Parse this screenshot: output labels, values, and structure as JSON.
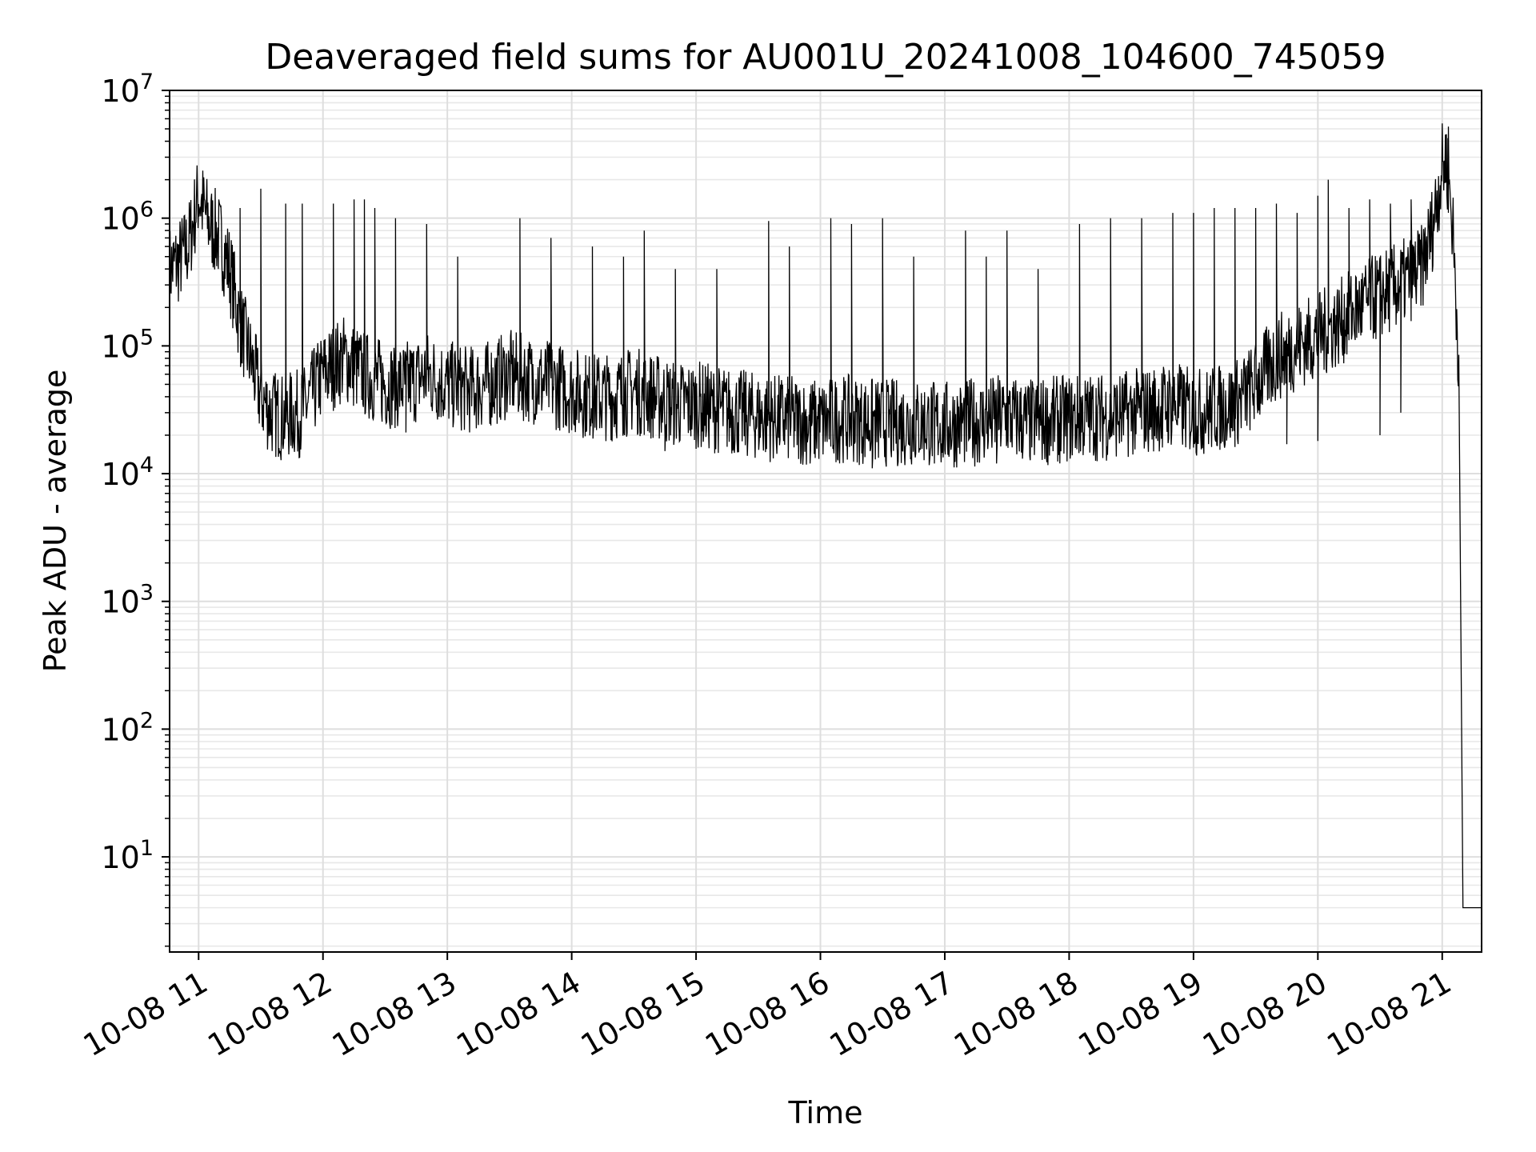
{
  "chart_data": {
    "type": "line",
    "title": "Deaveraged field sums for AU001U_20241008_104600_745059",
    "xlabel": "Time",
    "ylabel": "Peak ADU - average",
    "yscale": "log",
    "ylim": [
      1.8,
      10000000
    ],
    "xlim": [
      "2024-10-08 10:46",
      "2024-10-08 21:19"
    ],
    "grid": true,
    "x_ticks": [
      {
        "t": "2024-10-08 11:00",
        "label": "10-08 11"
      },
      {
        "t": "2024-10-08 12:00",
        "label": "10-08 12"
      },
      {
        "t": "2024-10-08 13:00",
        "label": "10-08 13"
      },
      {
        "t": "2024-10-08 14:00",
        "label": "10-08 14"
      },
      {
        "t": "2024-10-08 15:00",
        "label": "10-08 15"
      },
      {
        "t": "2024-10-08 16:00",
        "label": "10-08 16"
      },
      {
        "t": "2024-10-08 17:00",
        "label": "10-08 17"
      },
      {
        "t": "2024-10-08 18:00",
        "label": "10-08 18"
      },
      {
        "t": "2024-10-08 19:00",
        "label": "10-08 19"
      },
      {
        "t": "2024-10-08 20:00",
        "label": "10-08 20"
      },
      {
        "t": "2024-10-08 21:00",
        "label": "10-08 21"
      }
    ],
    "y_ticks": [
      {
        "value": 10,
        "base": "10",
        "exp": "1"
      },
      {
        "value": 100,
        "base": "10",
        "exp": "2"
      },
      {
        "value": 1000,
        "base": "10",
        "exp": "3"
      },
      {
        "value": 10000,
        "base": "10",
        "exp": "4"
      },
      {
        "value": 100000,
        "base": "10",
        "exp": "5"
      },
      {
        "value": 1000000,
        "base": "10",
        "exp": "6"
      },
      {
        "value": 10000000,
        "base": "10",
        "exp": "7"
      }
    ],
    "series": [
      {
        "color": "#000000",
        "x": [
          "2024-10-08 10:46",
          "2024-10-08 10:50",
          "2024-10-08 10:55",
          "2024-10-08 11:00",
          "2024-10-08 11:05",
          "2024-10-08 11:10",
          "2024-10-08 11:15",
          "2024-10-08 11:20",
          "2024-10-08 11:25",
          "2024-10-08 11:30",
          "2024-10-08 11:35",
          "2024-10-08 11:40",
          "2024-10-08 11:50",
          "2024-10-08 12:00",
          "2024-10-08 12:10",
          "2024-10-08 12:20",
          "2024-10-08 12:30",
          "2024-10-08 12:40",
          "2024-10-08 12:50",
          "2024-10-08 13:00",
          "2024-10-08 13:10",
          "2024-10-08 13:20",
          "2024-10-08 13:30",
          "2024-10-08 13:40",
          "2024-10-08 13:50",
          "2024-10-08 14:00",
          "2024-10-08 14:10",
          "2024-10-08 14:20",
          "2024-10-08 14:30",
          "2024-10-08 14:40",
          "2024-10-08 14:50",
          "2024-10-08 15:00",
          "2024-10-08 15:10",
          "2024-10-08 15:20",
          "2024-10-08 15:30",
          "2024-10-08 15:40",
          "2024-10-08 15:50",
          "2024-10-08 16:00",
          "2024-10-08 16:10",
          "2024-10-08 16:20",
          "2024-10-08 16:30",
          "2024-10-08 16:40",
          "2024-10-08 16:50",
          "2024-10-08 17:00",
          "2024-10-08 17:10",
          "2024-10-08 17:20",
          "2024-10-08 17:30",
          "2024-10-08 17:40",
          "2024-10-08 17:50",
          "2024-10-08 18:00",
          "2024-10-08 18:10",
          "2024-10-08 18:20",
          "2024-10-08 18:30",
          "2024-10-08 18:40",
          "2024-10-08 18:50",
          "2024-10-08 19:00",
          "2024-10-08 19:10",
          "2024-10-08 19:20",
          "2024-10-08 19:30",
          "2024-10-08 19:40",
          "2024-10-08 19:50",
          "2024-10-08 20:00",
          "2024-10-08 20:10",
          "2024-10-08 20:20",
          "2024-10-08 20:30",
          "2024-10-08 20:40",
          "2024-10-08 20:50",
          "2024-10-08 20:55",
          "2024-10-08 21:00",
          "2024-10-08 21:02",
          "2024-10-08 21:05",
          "2024-10-08 21:08",
          "2024-10-08 21:10",
          "2024-10-08 21:12",
          "2024-10-08 21:15",
          "2024-10-08 21:19"
        ],
        "y": [
          400000,
          450000,
          600000,
          1500000,
          900000,
          700000,
          400000,
          150000,
          80000,
          40000,
          30000,
          28000,
          30000,
          60000,
          80000,
          60000,
          50000,
          50000,
          60000,
          50000,
          45000,
          50000,
          60000,
          55000,
          50000,
          45000,
          40000,
          40000,
          45000,
          40000,
          35000,
          35000,
          32000,
          30000,
          28000,
          27000,
          26000,
          25000,
          27000,
          26000,
          25000,
          25000,
          25000,
          24000,
          25000,
          26000,
          28000,
          25000,
          26000,
          27000,
          28000,
          28000,
          30000,
          32000,
          35000,
          30000,
          32000,
          35000,
          50000,
          80000,
          100000,
          120000,
          150000,
          200000,
          250000,
          300000,
          400000,
          800000,
          2500000,
          3000000,
          900000,
          80000,
          4,
          4,
          4,
          4
        ],
        "spikes": [
          [
            "2024-10-08 11:20",
            1200000
          ],
          [
            "2024-10-08 11:30",
            1700000
          ],
          [
            "2024-10-08 11:42",
            1300000
          ],
          [
            "2024-10-08 11:50",
            1300000
          ],
          [
            "2024-10-08 12:05",
            1300000
          ],
          [
            "2024-10-08 12:15",
            1400000
          ],
          [
            "2024-10-08 12:20",
            1400000
          ],
          [
            "2024-10-08 12:25",
            1200000
          ],
          [
            "2024-10-08 12:35",
            1000000
          ],
          [
            "2024-10-08 12:50",
            900000
          ],
          [
            "2024-10-08 13:05",
            500000
          ],
          [
            "2024-10-08 13:35",
            1000000
          ],
          [
            "2024-10-08 13:50",
            700000
          ],
          [
            "2024-10-08 14:10",
            600000
          ],
          [
            "2024-10-08 14:25",
            500000
          ],
          [
            "2024-10-08 14:35",
            800000
          ],
          [
            "2024-10-08 14:50",
            400000
          ],
          [
            "2024-10-08 15:10",
            400000
          ],
          [
            "2024-10-08 15:35",
            950000
          ],
          [
            "2024-10-08 15:45",
            600000
          ],
          [
            "2024-10-08 16:05",
            1000000
          ],
          [
            "2024-10-08 16:15",
            900000
          ],
          [
            "2024-10-08 16:30",
            1000000
          ],
          [
            "2024-10-08 16:45",
            500000
          ],
          [
            "2024-10-08 17:10",
            800000
          ],
          [
            "2024-10-08 17:20",
            500000
          ],
          [
            "2024-10-08 17:30",
            800000
          ],
          [
            "2024-10-08 17:45",
            400000
          ],
          [
            "2024-10-08 18:05",
            900000
          ],
          [
            "2024-10-08 18:20",
            1000000
          ],
          [
            "2024-10-08 18:35",
            1000000
          ],
          [
            "2024-10-08 18:50",
            1100000
          ],
          [
            "2024-10-08 19:00",
            1100000
          ],
          [
            "2024-10-08 19:10",
            1200000
          ],
          [
            "2024-10-08 19:20",
            1200000
          ],
          [
            "2024-10-08 19:30",
            1200000
          ],
          [
            "2024-10-08 19:40",
            1300000
          ],
          [
            "2024-10-08 19:50",
            1100000
          ],
          [
            "2024-10-08 20:00",
            1500000
          ],
          [
            "2024-10-08 20:05",
            2000000
          ],
          [
            "2024-10-08 20:15",
            1200000
          ],
          [
            "2024-10-08 20:25",
            1400000
          ],
          [
            "2024-10-08 20:35",
            1300000
          ],
          [
            "2024-10-08 20:45",
            1400000
          ],
          [
            "2024-10-08 21:03",
            5200000
          ]
        ],
        "dips": [
          [
            "2024-10-08 11:35",
            20000
          ],
          [
            "2024-10-08 11:45",
            22000
          ],
          [
            "2024-10-08 12:40",
            21000
          ],
          [
            "2024-10-08 13:15",
            24000
          ],
          [
            "2024-10-08 14:45",
            15000
          ],
          [
            "2024-10-08 15:15",
            18000
          ],
          [
            "2024-10-08 15:55",
            12000
          ],
          [
            "2024-10-08 16:25",
            11000
          ],
          [
            "2024-10-08 16:55",
            12000
          ],
          [
            "2024-10-08 17:25",
            12000
          ],
          [
            "2024-10-08 17:55",
            14000
          ],
          [
            "2024-10-08 18:45",
            16000
          ],
          [
            "2024-10-08 19:45",
            17000
          ],
          [
            "2024-10-08 20:00",
            18000
          ],
          [
            "2024-10-08 20:30",
            20000
          ],
          [
            "2024-10-08 20:40",
            30000
          ]
        ]
      }
    ]
  }
}
